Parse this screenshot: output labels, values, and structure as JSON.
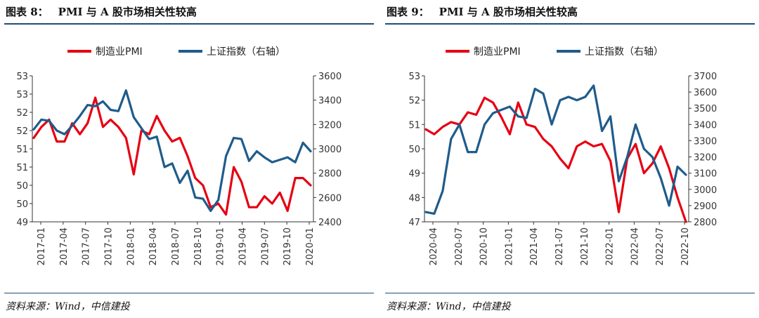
{
  "colors": {
    "pmi": "#e60012",
    "index": "#1f5c8b",
    "rule": "#1f4e79",
    "axis": "#333333"
  },
  "chart_data": [
    {
      "type": "line",
      "title_label": "图表 8：",
      "title_text": "PMI 与 A 股市场相关性较高",
      "source": "资料来源：Wind，中信建投",
      "legend": [
        "制造业PMI",
        "上证指数（右轴）"
      ],
      "x_tick_labels": [
        "2017-01",
        "2017-04",
        "2017-07",
        "2017-10",
        "2018-01",
        "2018-04",
        "2018-07",
        "2018-10",
        "2019-01",
        "2019-04",
        "2019-07",
        "2019-10",
        "2020-01"
      ],
      "y_left_ticks": [
        "53",
        "53",
        "52",
        "52",
        "51",
        "51",
        "50",
        "50",
        "49"
      ],
      "y_right_ticks": [
        "3600",
        "3400",
        "3200",
        "3000",
        "2800",
        "2600",
        "2400"
      ],
      "y_left_range": [
        49,
        53
      ],
      "y_right_range": [
        2400,
        3600
      ],
      "series": [
        {
          "name": "制造业PMI",
          "axis": "left",
          "values": [
            51.3,
            51.6,
            51.8,
            51.2,
            51.2,
            51.7,
            51.4,
            51.7,
            52.4,
            51.6,
            51.8,
            51.6,
            51.3,
            50.3,
            51.5,
            51.4,
            51.9,
            51.5,
            51.2,
            51.3,
            50.8,
            50.2,
            50.0,
            49.4,
            49.5,
            49.2,
            50.5,
            50.1,
            49.4,
            49.4,
            49.7,
            49.5,
            49.8,
            49.3,
            50.2,
            50.2,
            50.0
          ]
        },
        {
          "name": "上证指数（右轴）",
          "axis": "right",
          "values": [
            3160,
            3240,
            3230,
            3150,
            3120,
            3190,
            3270,
            3360,
            3350,
            3390,
            3320,
            3310,
            3480,
            3260,
            3170,
            3080,
            3100,
            2850,
            2880,
            2720,
            2820,
            2600,
            2590,
            2490,
            2580,
            2940,
            3090,
            3080,
            2900,
            2980,
            2930,
            2890,
            2910,
            2930,
            2890,
            3050,
            2980
          ]
        }
      ]
    },
    {
      "type": "line",
      "title_label": "图表 9：",
      "title_text": "PMI 与 A 股市场相关性较高",
      "source": "资料来源：Wind，中信建投",
      "legend": [
        "制造业PMI",
        "上证指数（右轴）"
      ],
      "x_tick_labels": [
        "2020-04",
        "2020-07",
        "2020-10",
        "2021-01",
        "2021-04",
        "2021-07",
        "2021-10",
        "2022-01",
        "2022-04",
        "2022-07",
        "2022-10"
      ],
      "y_left_ticks": [
        "53",
        "52",
        "51",
        "50",
        "49",
        "48",
        "47"
      ],
      "y_right_ticks": [
        "3700",
        "3600",
        "3500",
        "3400",
        "3300",
        "3200",
        "3100",
        "3000",
        "2900",
        "2800"
      ],
      "y_left_range": [
        47,
        53
      ],
      "y_right_range": [
        2800,
        3700
      ],
      "series": [
        {
          "name": "制造业PMI",
          "axis": "left",
          "values": [
            50.8,
            50.6,
            50.9,
            51.1,
            51.0,
            51.5,
            51.4,
            52.1,
            51.9,
            51.3,
            50.6,
            51.9,
            51.0,
            50.9,
            50.4,
            50.1,
            49.6,
            49.2,
            50.1,
            50.3,
            50.1,
            50.2,
            49.5,
            47.4,
            49.6,
            50.2,
            49.0,
            49.4,
            50.1,
            49.2,
            48.0,
            47.0
          ]
        },
        {
          "name": "上证指数（右轴）",
          "axis": "right",
          "values": [
            2860,
            2850,
            2990,
            3310,
            3400,
            3230,
            3230,
            3400,
            3470,
            3490,
            3510,
            3450,
            3440,
            3620,
            3590,
            3400,
            3550,
            3570,
            3550,
            3570,
            3640,
            3360,
            3450,
            3050,
            3200,
            3400,
            3250,
            3200,
            3070,
            2900,
            3140,
            3090
          ]
        }
      ]
    }
  ]
}
